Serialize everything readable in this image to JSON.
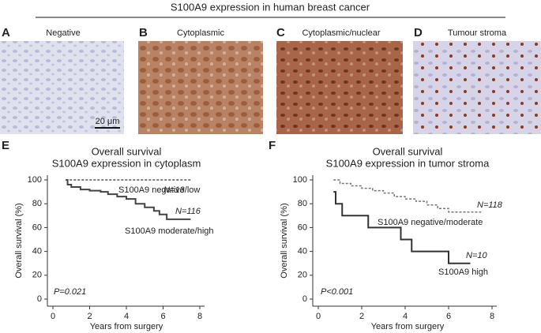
{
  "figure_title": "S100A9 expression in human breast cancer",
  "panels": [
    {
      "letter": "A",
      "label": "Negative"
    },
    {
      "letter": "B",
      "label": "Cytoplasmic"
    },
    {
      "letter": "C",
      "label": "Cytoplasmic/nuclear"
    },
    {
      "letter": "D",
      "label": "Tumour stroma"
    }
  ],
  "scale_bar": "20 μm",
  "chart_data": [
    {
      "type": "line",
      "step": true,
      "letter": "E",
      "title": [
        "Overall survival",
        "S100A9 expression in cytoplasm"
      ],
      "y_label": "Overall survival (%)",
      "x_label": "Years from surgery",
      "xlim": [
        0,
        8
      ],
      "xticks": [
        0,
        2,
        4,
        6,
        8
      ],
      "ylim": [
        0,
        100
      ],
      "yticks": [
        0,
        20,
        40,
        60,
        80,
        100
      ],
      "series": [
        {
          "name": "S100A9 negative/low",
          "color": "#555555",
          "dash": true,
          "x": [
            0.7,
            7.5
          ],
          "values": [
            100,
            100
          ]
        },
        {
          "name": "S100A9 moderate/high",
          "color": "#444444",
          "dash": false,
          "x": [
            0.7,
            0.8,
            1.0,
            1.5,
            2.0,
            2.6,
            3.0,
            3.5,
            4.0,
            4.5,
            5.0,
            5.5,
            5.8,
            6.2,
            7.5
          ],
          "values": [
            100,
            96,
            94,
            92,
            91,
            90,
            88,
            86,
            84,
            80,
            77,
            74,
            71,
            67,
            67
          ]
        }
      ],
      "annotations": [
        "N=13",
        "N=116",
        "P=0.021"
      ]
    },
    {
      "type": "line",
      "step": true,
      "letter": "F",
      "title": [
        "Overall survival",
        "S100A9 expression in tumor stroma"
      ],
      "y_label": "Overall survival (%)",
      "x_label": "Years from surgery",
      "xlim": [
        0,
        8
      ],
      "xticks": [
        0,
        2,
        4,
        6,
        8
      ],
      "ylim": [
        0,
        100
      ],
      "yticks": [
        0,
        20,
        40,
        60,
        80,
        100
      ],
      "series": [
        {
          "name": "S100A9 negative/moderate",
          "color": "#777777",
          "dash": true,
          "x": [
            0.7,
            1.0,
            1.5,
            2.0,
            2.5,
            3.0,
            3.5,
            4.0,
            4.5,
            5.0,
            5.5,
            6.0,
            7.5
          ],
          "values": [
            100,
            97,
            95,
            93,
            91,
            89,
            86,
            84,
            82,
            79,
            76,
            73,
            73
          ]
        },
        {
          "name": "S100A9 high",
          "color": "#333333",
          "dash": false,
          "x": [
            0.7,
            0.8,
            1.1,
            2.3,
            3.8,
            4.3,
            6.0,
            7.0
          ],
          "values": [
            90,
            80,
            70,
            60,
            50,
            40,
            30,
            30
          ]
        }
      ],
      "annotations": [
        "N=118",
        "N=10",
        "P<0.001"
      ]
    }
  ]
}
